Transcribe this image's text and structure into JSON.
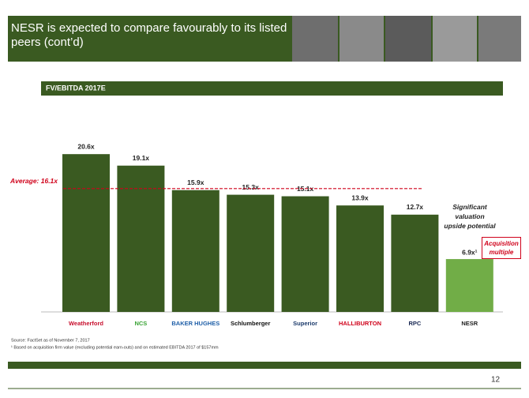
{
  "header": {
    "title": "NESR is expected to compare favourably to its listed peers (cont’d)"
  },
  "chart_data": {
    "type": "bar",
    "title": "FV/EBITDA 2017E",
    "categories": [
      "Weatherford",
      "NCS",
      "BAKER HUGHES",
      "Schlumberger",
      "Superior",
      "HALLIBURTON",
      "RPC",
      "NESR"
    ],
    "values": [
      20.6,
      19.1,
      15.9,
      15.3,
      15.1,
      13.9,
      12.7,
      6.9
    ],
    "value_labels": [
      "20.6x",
      "19.1x",
      "15.9x",
      "15.3x",
      "15.1x",
      "13.9x",
      "12.7x",
      "6.9x¹"
    ],
    "colors": [
      "#3a5a21",
      "#3a5a21",
      "#3a5a21",
      "#3a5a21",
      "#3a5a21",
      "#3a5a21",
      "#3a5a21",
      "#71ad47"
    ],
    "category_colors": [
      "#c8102e",
      "#3aa335",
      "#1f5fa8",
      "#111111",
      "#1b3a6b",
      "#d0021b",
      "#1b2a55",
      "#222222"
    ],
    "average": {
      "value": 16.1,
      "label": "Average: 16.1x",
      "color": "#d0021b"
    },
    "annotations": [
      "Significant valuation upside potential",
      "Acquisition multiple"
    ]
  },
  "footer": {
    "notes": [
      "Source: FactSet as of November 7, 2017",
      "¹ Based on acquisition firm value (excluding potential earn-outs) and on estimated EBITDA 2017 of $157mm"
    ],
    "page": "12"
  }
}
